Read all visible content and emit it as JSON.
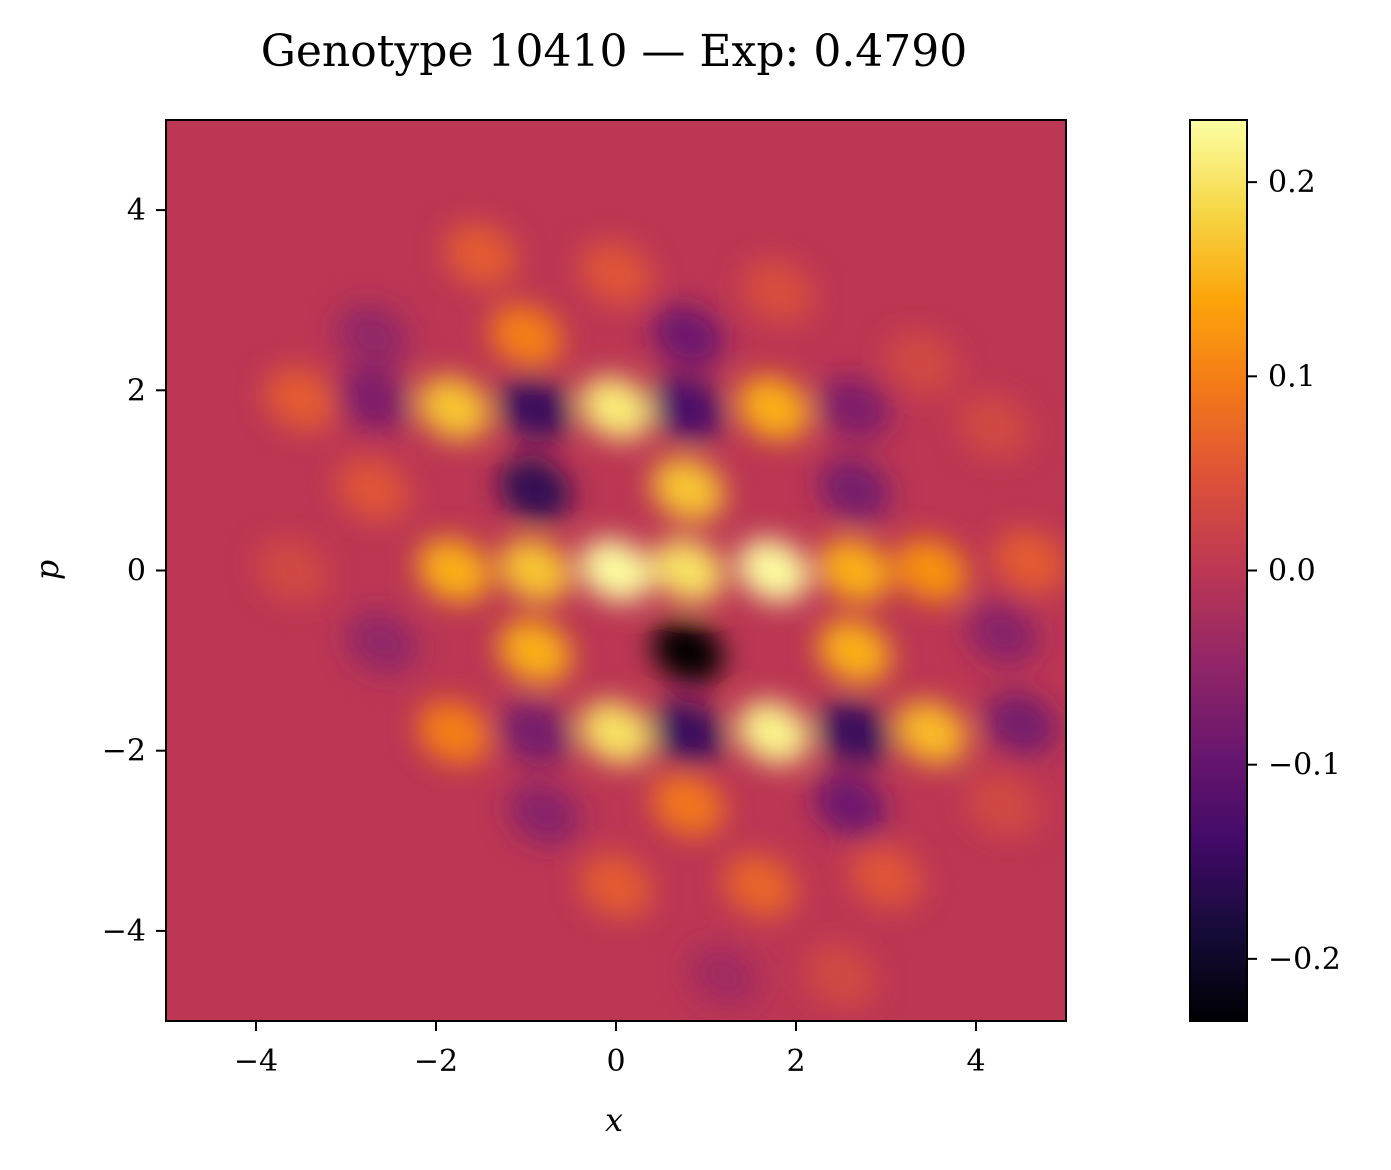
{
  "chart_data": {
    "type": "heatmap",
    "title": "Genotype 10410 — Exp: 0.4790",
    "xlabel": "x",
    "ylabel": "p",
    "xlim": [
      -5,
      5
    ],
    "ylim": [
      -5,
      5
    ],
    "x_ticks": [
      -4,
      -2,
      0,
      2,
      4
    ],
    "y_ticks": [
      -4,
      -2,
      0,
      2,
      4
    ],
    "x_tick_labels": [
      "−4",
      "−2",
      "0",
      "2",
      "4"
    ],
    "y_tick_labels": [
      "−4",
      "−2",
      "0",
      "2",
      "4"
    ],
    "colormap": "inferno",
    "colorbar": {
      "range": [
        -0.232,
        0.232
      ],
      "ticks": [
        0.2,
        0.1,
        0.0,
        -0.1,
        -0.2
      ],
      "tick_labels": [
        "0.2",
        "0.1",
        "0.0",
        "−0.1",
        "−0.2"
      ]
    },
    "background_value": 0.0,
    "features": [
      {
        "x": 0.0,
        "p": 0.0,
        "value": 0.23
      },
      {
        "x": 1.75,
        "p": 0.0,
        "value": 0.23
      },
      {
        "x": 0.8,
        "p": 0.0,
        "value": 0.2
      },
      {
        "x": -0.9,
        "p": 0.0,
        "value": 0.17
      },
      {
        "x": -1.8,
        "p": 0.0,
        "value": 0.15
      },
      {
        "x": 2.65,
        "p": 0.0,
        "value": 0.15
      },
      {
        "x": 3.5,
        "p": 0.0,
        "value": 0.12
      },
      {
        "x": 4.6,
        "p": 0.1,
        "value": 0.06
      },
      {
        "x": -3.6,
        "p": 0.0,
        "value": 0.03
      },
      {
        "x": 0.0,
        "p": 1.8,
        "value": 0.21
      },
      {
        "x": -1.8,
        "p": 1.8,
        "value": 0.17
      },
      {
        "x": 1.75,
        "p": 1.8,
        "value": 0.15
      },
      {
        "x": -0.9,
        "p": 1.8,
        "value": -0.15
      },
      {
        "x": 0.8,
        "p": 1.8,
        "value": -0.13
      },
      {
        "x": 2.65,
        "p": 1.8,
        "value": -0.07
      },
      {
        "x": -2.7,
        "p": 1.9,
        "value": -0.07
      },
      {
        "x": -3.5,
        "p": 1.9,
        "value": 0.06
      },
      {
        "x": 0.0,
        "p": -1.8,
        "value": 0.2
      },
      {
        "x": 1.75,
        "p": -1.8,
        "value": 0.22
      },
      {
        "x": 3.5,
        "p": -1.8,
        "value": 0.16
      },
      {
        "x": -1.8,
        "p": -1.8,
        "value": 0.1
      },
      {
        "x": 0.8,
        "p": -1.8,
        "value": -0.15
      },
      {
        "x": 2.65,
        "p": -1.8,
        "value": -0.15
      },
      {
        "x": -0.9,
        "p": -1.8,
        "value": -0.08
      },
      {
        "x": 4.5,
        "p": -1.7,
        "value": -0.08
      },
      {
        "x": -0.9,
        "p": 0.9,
        "value": -0.16
      },
      {
        "x": 0.8,
        "p": 0.9,
        "value": 0.17
      },
      {
        "x": 2.65,
        "p": 0.9,
        "value": -0.08
      },
      {
        "x": -2.7,
        "p": 0.9,
        "value": 0.05
      },
      {
        "x": -0.9,
        "p": -0.9,
        "value": 0.15
      },
      {
        "x": 0.8,
        "p": -0.9,
        "value": -0.23
      },
      {
        "x": 2.65,
        "p": -0.9,
        "value": 0.15
      },
      {
        "x": 4.3,
        "p": -0.7,
        "value": -0.06
      },
      {
        "x": -2.6,
        "p": -0.8,
        "value": -0.05
      },
      {
        "x": -1.0,
        "p": 2.6,
        "value": 0.1
      },
      {
        "x": 0.8,
        "p": 2.6,
        "value": -0.09
      },
      {
        "x": -2.7,
        "p": 2.6,
        "value": -0.05
      },
      {
        "x": 0.8,
        "p": -2.6,
        "value": 0.09
      },
      {
        "x": 2.6,
        "p": -2.6,
        "value": -0.09
      },
      {
        "x": -0.8,
        "p": -2.7,
        "value": -0.06
      },
      {
        "x": 4.3,
        "p": -2.6,
        "value": 0.03
      },
      {
        "x": -1.5,
        "p": 3.5,
        "value": 0.06
      },
      {
        "x": 0.0,
        "p": 3.3,
        "value": 0.05
      },
      {
        "x": 1.8,
        "p": 3.1,
        "value": 0.04
      },
      {
        "x": 3.4,
        "p": 2.3,
        "value": 0.03
      },
      {
        "x": 4.2,
        "p": 1.6,
        "value": 0.03
      },
      {
        "x": 0.0,
        "p": -3.5,
        "value": 0.06
      },
      {
        "x": 1.6,
        "p": -3.5,
        "value": 0.07
      },
      {
        "x": 3.0,
        "p": -3.4,
        "value": 0.05
      },
      {
        "x": 1.2,
        "p": -4.5,
        "value": -0.03
      },
      {
        "x": 2.5,
        "p": -4.5,
        "value": 0.03
      }
    ]
  }
}
